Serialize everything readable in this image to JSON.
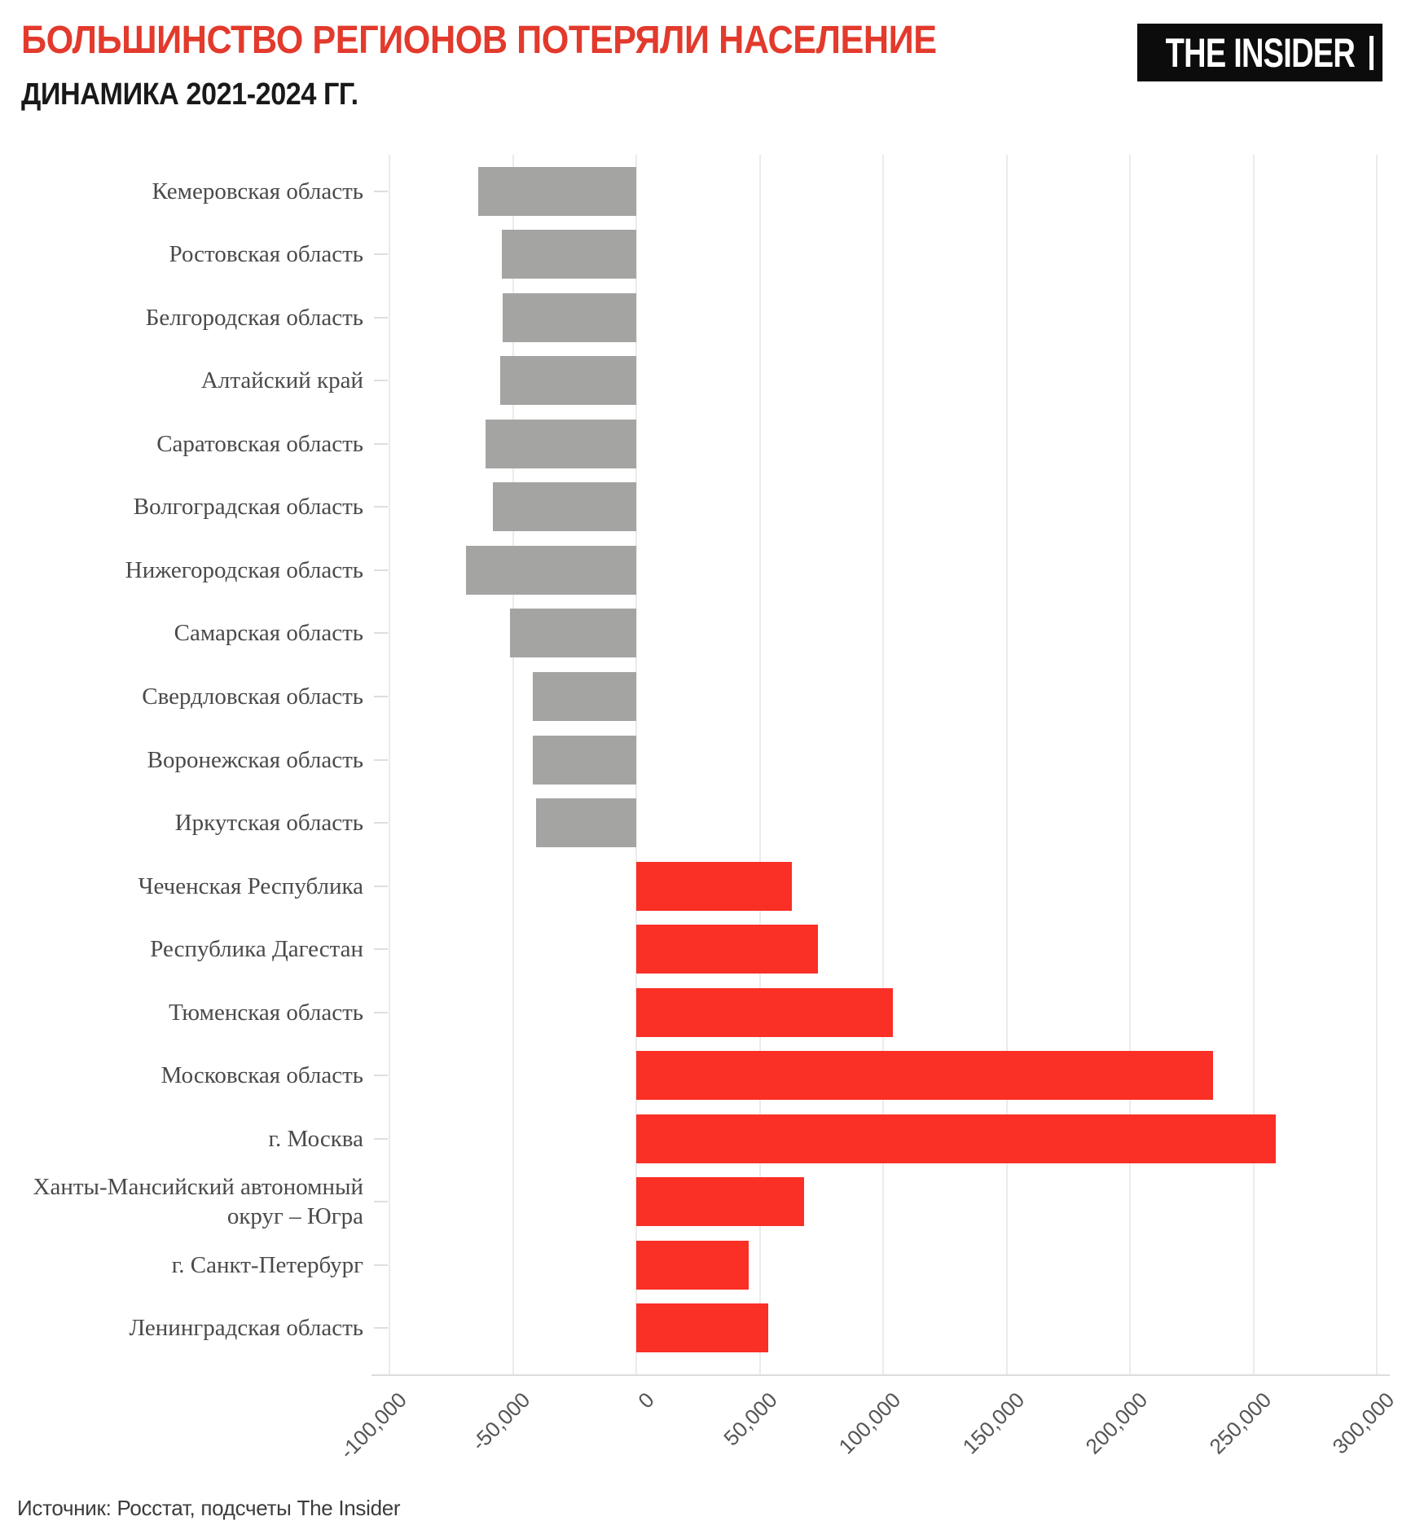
{
  "header": {
    "title": "БОЛЬШИНСТВО РЕГИОНОВ ПОТЕРЯЛИ НАСЕЛЕНИЕ",
    "subtitle": "ДИНАМИКА 2021-2024 ГГ.",
    "logo_text": "THE INSIDER"
  },
  "footer": {
    "source": "Источник: Росстат, подсчеты The Insider"
  },
  "colors": {
    "title_accent": "#e23a2c",
    "loss_bar": "#a4a4a2",
    "gain_bar": "#fa2f25",
    "logo_background": "#0c0c0c",
    "logo_text": "#ffffff"
  },
  "chart_data": {
    "type": "bar",
    "orientation": "horizontal",
    "title": "БОЛЬШИНСТВО РЕГИОНОВ ПОТЕРЯЛИ НАСЕЛЕНИЕ",
    "subtitle": "ДИНАМИКА 2021-2024 ГГ.",
    "xlabel": "",
    "ylabel": "",
    "xlim": [
      -100000,
      300000
    ],
    "grid": true,
    "negative_color": "#a4a4a2",
    "positive_color": "#fa2f25",
    "categories": [
      "Кемеровская область",
      "Ростовская область",
      "Белгородская область",
      "Алтайский край",
      "Саратовская область",
      "Волгоградская область",
      "Нижегородская область",
      "Самарская область",
      "Свердловская область",
      "Воронежская область",
      "Иркутская область",
      "Чеченская Республика",
      "Республика Дагестан",
      "Тюменская область",
      "Московская область",
      "г. Москва",
      "Ханты-Мансийский автономный округ – Югра",
      "г. Санкт-Петербург",
      "Ленинградская область"
    ],
    "values": [
      -64000,
      -54500,
      -54000,
      -55000,
      -61000,
      -58000,
      -69000,
      -51000,
      -42000,
      -42000,
      -40500,
      63000,
      73500,
      104000,
      233500,
      259000,
      68000,
      45500,
      53500
    ],
    "x_ticks": {
      "values": [
        -100000,
        -50000,
        0,
        50000,
        100000,
        150000,
        200000,
        250000,
        300000
      ],
      "labels": [
        "-100,000",
        "-50,000",
        "0",
        "50,000",
        "100,000",
        "150,000",
        "200,000",
        "250,000",
        "300,000"
      ]
    }
  }
}
